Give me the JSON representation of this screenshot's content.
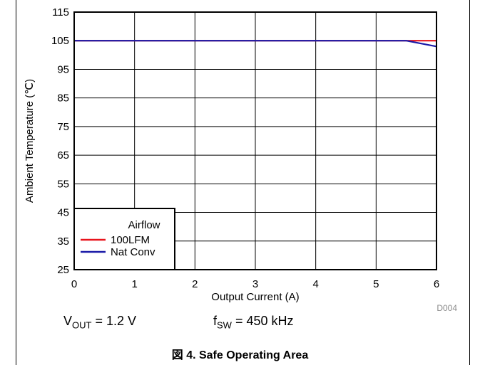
{
  "chart_data": {
    "type": "line",
    "xlabel": "Output Current (A)",
    "ylabel": "Ambient Temperature (℃)",
    "xlim": [
      0,
      6
    ],
    "ylim": [
      25,
      115
    ],
    "x_ticks": [
      "0",
      "1",
      "2",
      "3",
      "4",
      "5",
      "6"
    ],
    "y_ticks": [
      "25",
      "35",
      "45",
      "55",
      "65",
      "75",
      "85",
      "95",
      "105",
      "115"
    ],
    "grid": true,
    "legend": {
      "title": "Airflow",
      "placement": "bottom-left"
    },
    "series": [
      {
        "name": "100LFM",
        "color": "#e8141c",
        "x": [
          0,
          5.5,
          6
        ],
        "y": [
          105,
          105,
          105
        ]
      },
      {
        "name": "Nat Conv",
        "color": "#1a1aa8",
        "x": [
          0,
          5.5,
          6
        ],
        "y": [
          105,
          105,
          103
        ]
      }
    ],
    "figure_code": "D004"
  },
  "conditions": {
    "vout_symbol": "V",
    "vout_sub": "OUT",
    "vout_value": " = 1.2 V",
    "fsw_symbol": "f",
    "fsw_sub": "SW",
    "fsw_value": " = 450 kHz"
  },
  "caption": "図 4. Safe Operating Area"
}
